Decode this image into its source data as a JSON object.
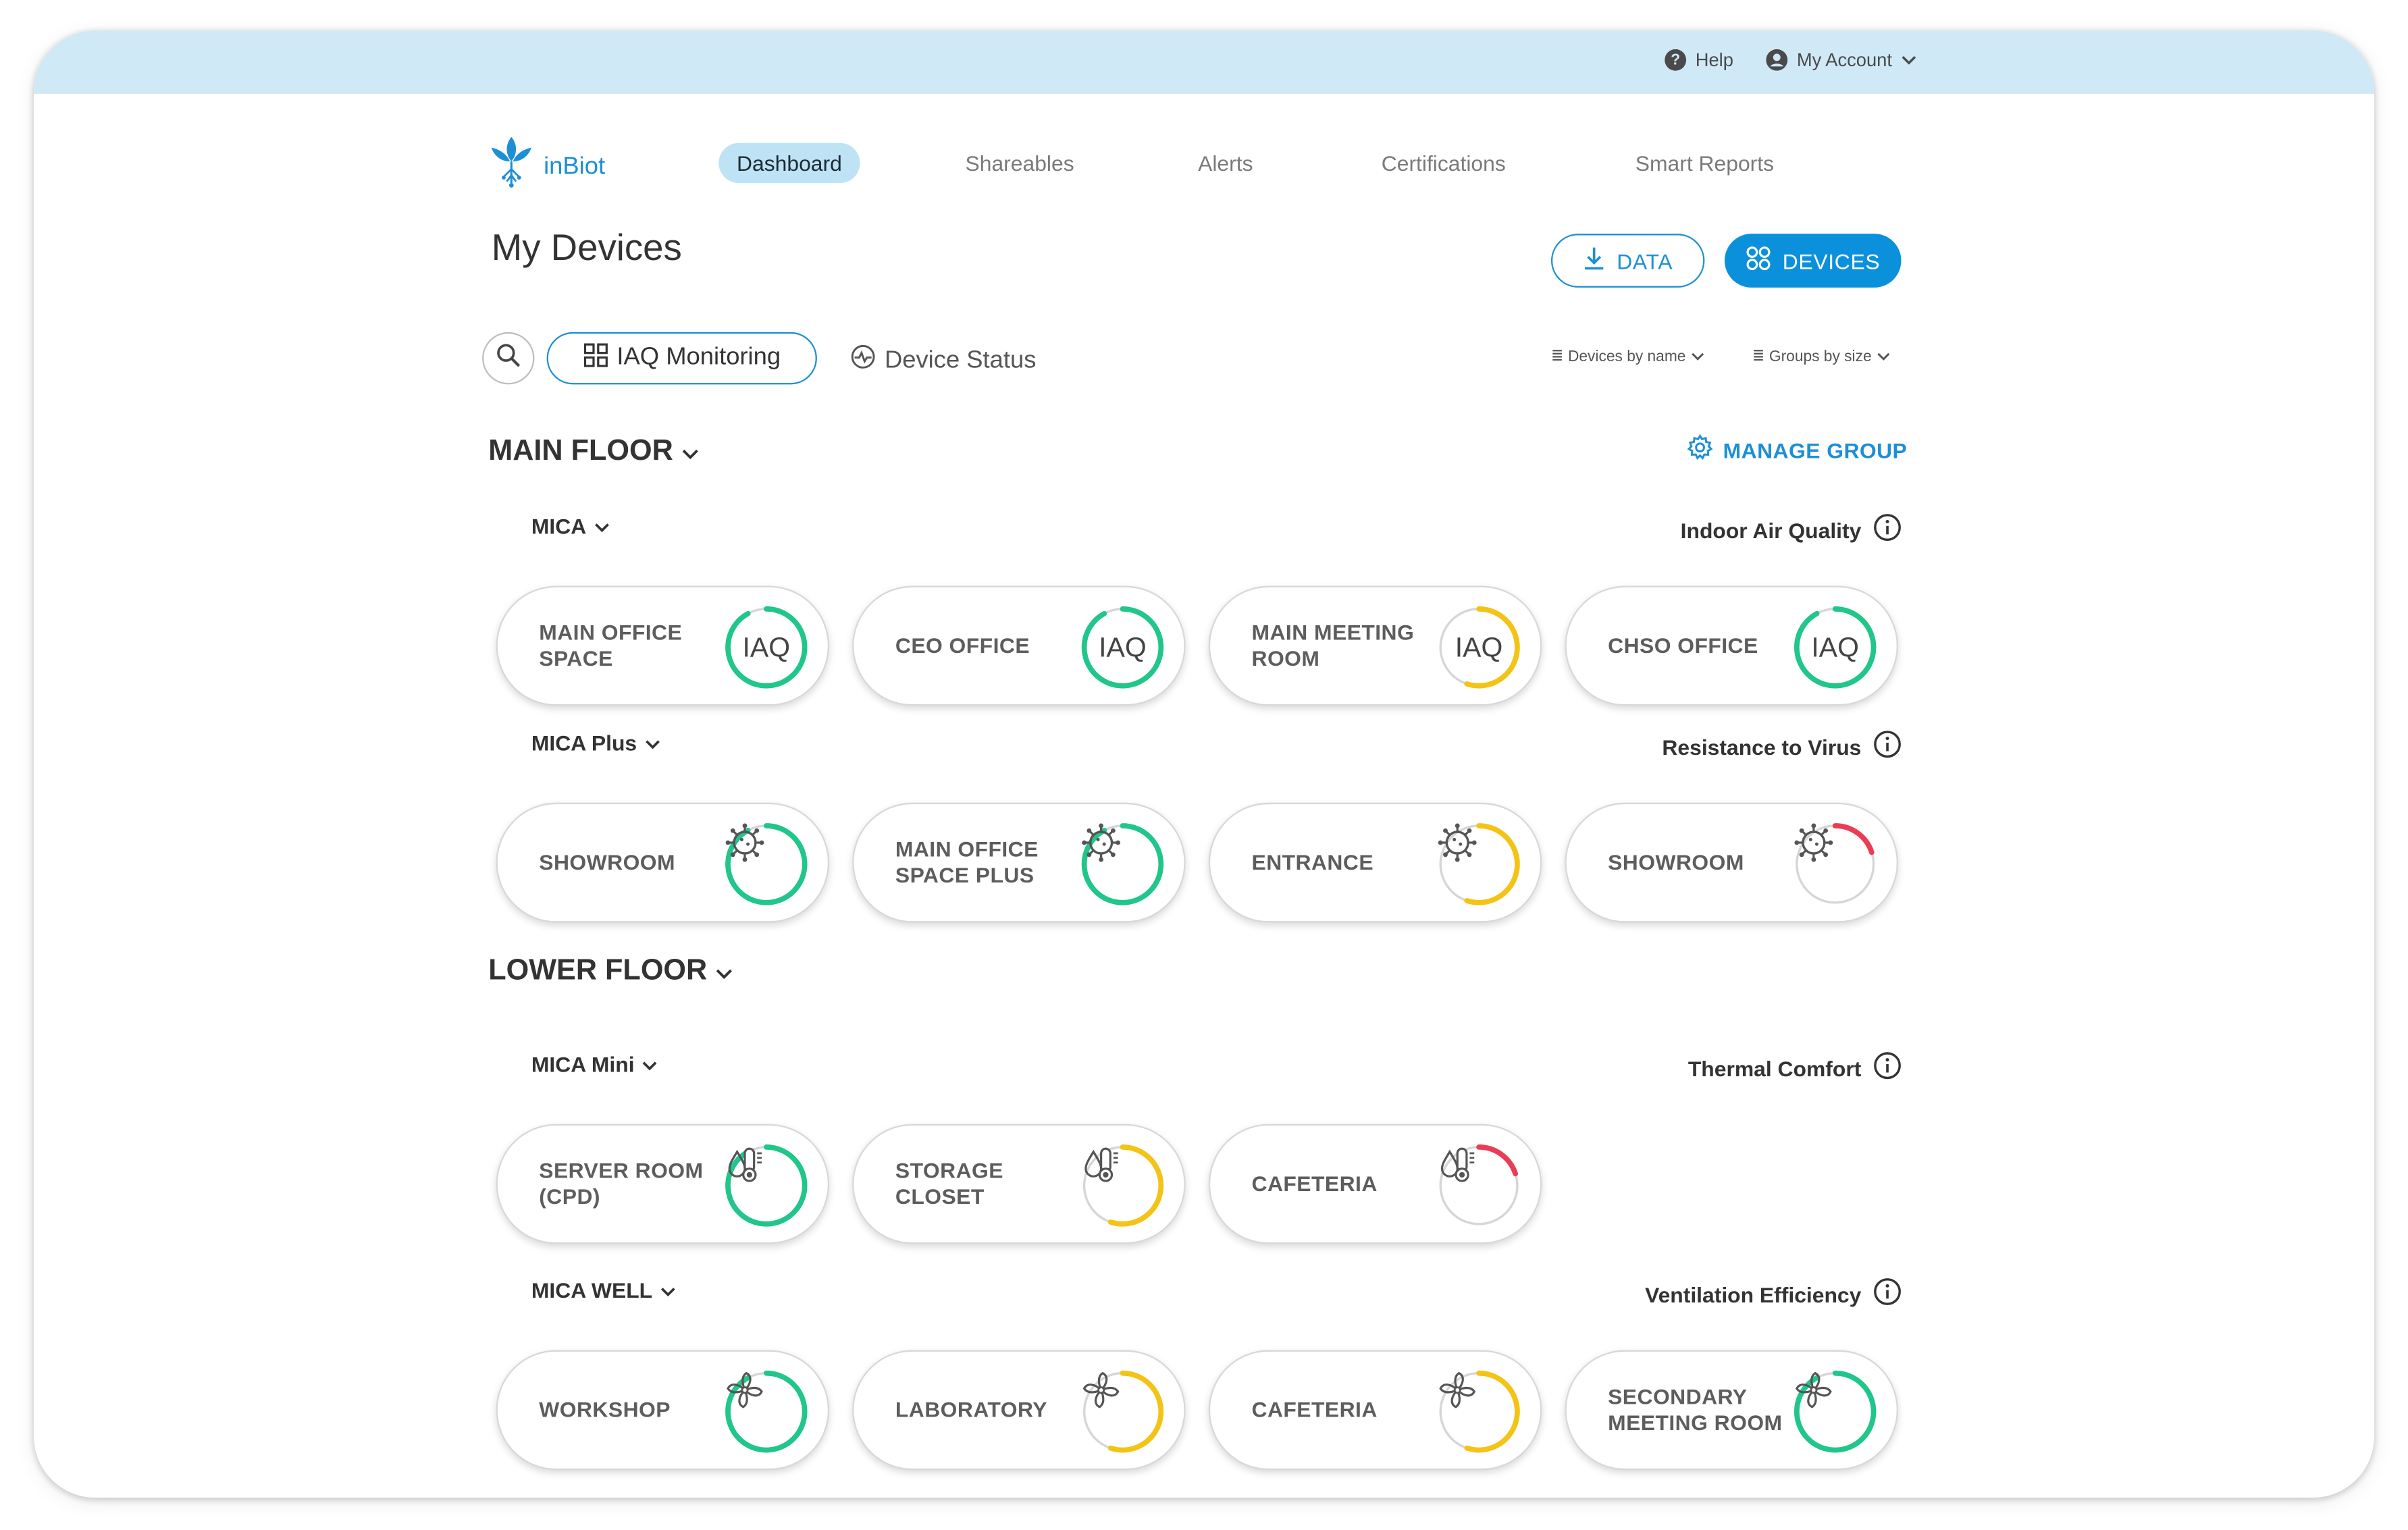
{
  "topbar": {
    "help": "Help",
    "account": "My Account"
  },
  "logo": {
    "text": "inBiot"
  },
  "nav": {
    "dashboard": "Dashboard",
    "shareables": "Shareables",
    "alerts": "Alerts",
    "certifications": "Certifications",
    "smart_reports": "Smart Reports"
  },
  "page_title": "My Devices",
  "buttons": {
    "data": "DATA",
    "devices": "DEVICES"
  },
  "filters": {
    "iaq_monitoring": "IAQ Monitoring",
    "device_status": "Device Status",
    "sort_devices": "Devices by name",
    "sort_groups": "Groups by size"
  },
  "manage_group": "MANAGE GROUP",
  "floors": [
    {
      "title": "MAIN FLOOR",
      "groups": [
        {
          "name": "MICA",
          "metric": "Indoor Air Quality",
          "icon": "iaq-text",
          "devices": [
            {
              "label": "MAIN OFFICE SPACE",
              "level": 0.92,
              "color": "#20c68a"
            },
            {
              "label": "CEO OFFICE",
              "level": 0.92,
              "color": "#20c68a"
            },
            {
              "label": "MAIN MEETING ROOM",
              "level": 0.55,
              "color": "#f3c316"
            },
            {
              "label": "CHSO OFFICE",
              "level": 0.92,
              "color": "#20c68a"
            }
          ]
        },
        {
          "name": "MICA Plus",
          "metric": "Resistance to Virus",
          "icon": "virus-icon",
          "devices": [
            {
              "label": "SHOWROOM",
              "level": 0.92,
              "color": "#20c68a"
            },
            {
              "label": "MAIN OFFICE SPACE PLUS",
              "level": 0.92,
              "color": "#20c68a"
            },
            {
              "label": "ENTRANCE",
              "level": 0.55,
              "color": "#f3c316"
            },
            {
              "label": "SHOWROOM",
              "level": 0.2,
              "color": "#ea3d55"
            }
          ]
        }
      ]
    },
    {
      "title": "LOWER FLOOR",
      "groups": [
        {
          "name": "MICA Mini",
          "metric": "Thermal Comfort",
          "icon": "thermal-icon",
          "devices": [
            {
              "label": "SERVER ROOM (CPD)",
              "level": 0.92,
              "color": "#20c68a"
            },
            {
              "label": "STORAGE CLOSET",
              "level": 0.55,
              "color": "#f3c316"
            },
            {
              "label": "CAFETERIA",
              "level": 0.2,
              "color": "#ea3d55"
            }
          ]
        },
        {
          "name": "MICA WELL",
          "metric": "Ventilation Efficiency",
          "icon": "fan-icon",
          "devices": [
            {
              "label": "WORKSHOP",
              "level": 0.92,
              "color": "#20c68a"
            },
            {
              "label": "LABORATORY",
              "level": 0.55,
              "color": "#f3c316"
            },
            {
              "label": "CAFETERIA",
              "level": 0.55,
              "color": "#f3c316"
            },
            {
              "label": "SECONDARY MEETING ROOM",
              "level": 0.92,
              "color": "#20c68a"
            }
          ]
        }
      ]
    }
  ],
  "ring_center_text": "IAQ"
}
